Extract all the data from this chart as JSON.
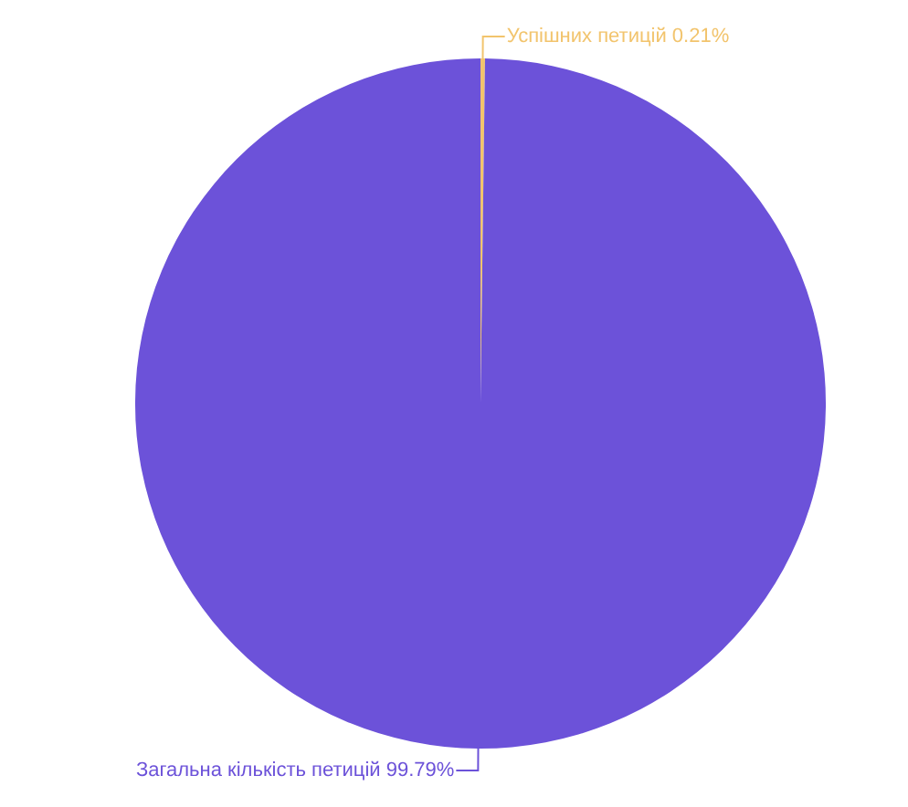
{
  "chart_data": {
    "type": "pie",
    "categories": [
      "Успішних петицій",
      "Загальна кількість петицій"
    ],
    "values": [
      0.21,
      99.79
    ],
    "colors": [
      "#f2c46d",
      "#6c52d9"
    ],
    "value_labels": [
      "0.21%",
      "99.79%"
    ],
    "legend": false
  }
}
